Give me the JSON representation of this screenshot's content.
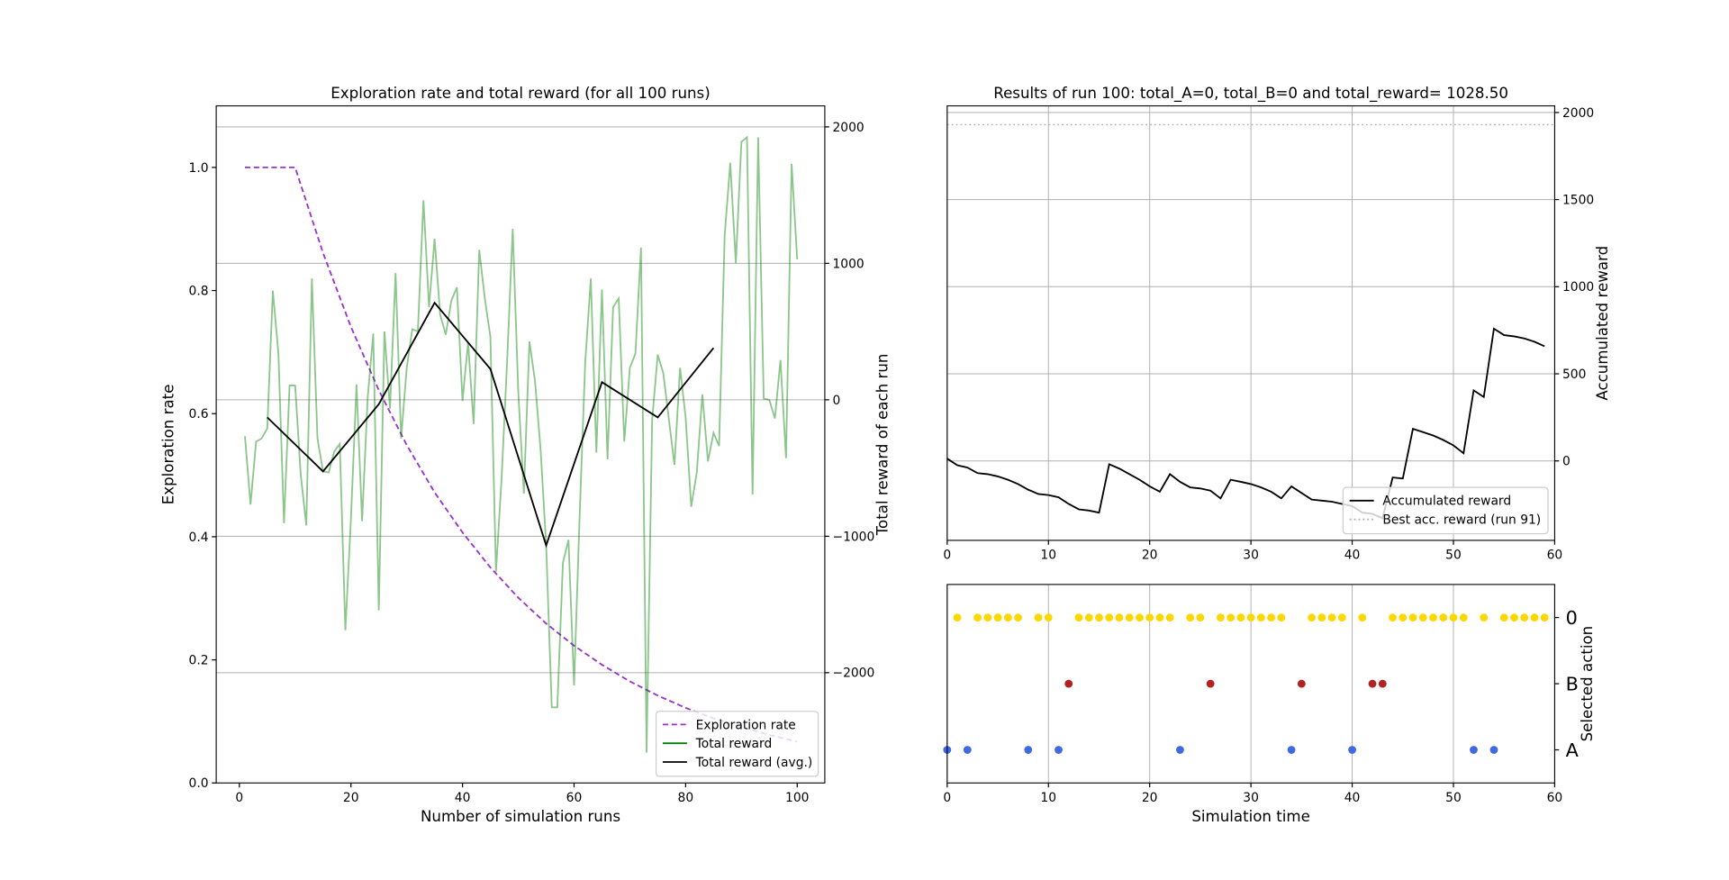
{
  "chart_data": [
    {
      "type": "line",
      "title": "Exploration rate and total reward (for all 100 runs)",
      "xlabel": "Number of simulation runs",
      "ylabel": "Exploration rate",
      "y2label": "Total reward of each run",
      "ylabel_color": "#9932cc",
      "y2label_color": "#2e8b2e",
      "xlim": [
        -4.15,
        104.95
      ],
      "xticks": [
        0,
        20,
        40,
        60,
        80,
        100
      ],
      "ylim": [
        0,
        1.1
      ],
      "yticks": [
        {
          "value": 0,
          "label": "0.0"
        },
        0.2,
        0.4,
        0.6,
        0.8,
        {
          "value": 1,
          "label": "1.0"
        }
      ],
      "y2lim": [
        -2808,
        2154
      ],
      "y2ticks": [
        {
          "value": -2000,
          "label": "−2000"
        },
        {
          "value": -1000,
          "label": "−1000"
        },
        0,
        1000,
        2000
      ],
      "grid": "y2",
      "legend": "lower right",
      "series": [
        {
          "name": "Exploration rate",
          "color": "#9932cc",
          "dash": "dashed",
          "x": [
            1,
            10,
            15,
            20,
            25,
            30,
            35,
            40,
            45,
            50,
            55,
            60,
            65,
            70,
            75,
            80,
            85,
            90,
            95,
            100
          ],
          "values": [
            1,
            1,
            0.861,
            0.741,
            0.638,
            0.549,
            0.472,
            0.407,
            0.35,
            0.301,
            0.259,
            0.223,
            0.192,
            0.165,
            0.142,
            0.122,
            0.105,
            0.091,
            0.078,
            0.067
          ]
        },
        {
          "name": "Total reward",
          "color": "#008000",
          "alpha": 0.45,
          "axis": "y2",
          "x": [
            1,
            2,
            3,
            4,
            5,
            6,
            7,
            8,
            9,
            10,
            11,
            12,
            13,
            14,
            15,
            16,
            17,
            18,
            19,
            20,
            21,
            22,
            23,
            24,
            25,
            26,
            27,
            28,
            29,
            30,
            31,
            32,
            33,
            34,
            35,
            36,
            37,
            38,
            39,
            40,
            41,
            42,
            43,
            44,
            45,
            46,
            47,
            48,
            49,
            50,
            51,
            52,
            53,
            54,
            55,
            56,
            57,
            58,
            59,
            60,
            61,
            62,
            63,
            64,
            65,
            66,
            67,
            68,
            69,
            70,
            71,
            72,
            73,
            74,
            75,
            76,
            77,
            78,
            79,
            80,
            81,
            82,
            83,
            84,
            85,
            86,
            87,
            88,
            89,
            90,
            91,
            92,
            93,
            94,
            95,
            96,
            97,
            98,
            99,
            100
          ],
          "values": [
            -267,
            -768,
            -307,
            -283,
            -210,
            800,
            339,
            -905,
            105,
            105,
            -549,
            -921,
            889,
            -283,
            -525,
            -533,
            -380,
            -323,
            -1689,
            -873,
            113,
            -889,
            16,
            485,
            -1543,
            501,
            -65,
            929,
            -283,
            234,
            517,
            501,
            1462,
            679,
            1180,
            622,
            477,
            727,
            824,
            -8,
            420,
            -178,
            1099,
            743,
            461,
            -1260,
            -582,
            283,
            1252,
            57,
            -687,
            428,
            137,
            -364,
            -1067,
            -2254,
            -2254,
            -1196,
            -1026,
            -2093,
            -848,
            275,
            889,
            -388,
            808,
            -436,
            679,
            743,
            -307,
            234,
            339,
            1115,
            -2586,
            -145,
            331,
            194,
            -145,
            -477,
            234,
            -129,
            -784,
            -533,
            40,
            -452,
            -242,
            -339,
            1204,
            1737,
            1002,
            1891,
            1923,
            -695,
            1923,
            8,
            0,
            -137,
            291,
            -428,
            1729,
            1028.5
          ]
        },
        {
          "name": "Total reward (avg.)",
          "color": "#000000",
          "axis": "y2",
          "x": [
            5,
            15,
            25,
            35,
            45,
            55,
            65,
            75,
            85
          ],
          "values": [
            -129,
            -525,
            -32,
            711,
            226,
            -1067,
            129,
            -129,
            380
          ]
        }
      ]
    },
    {
      "type": "line",
      "title": "Results of run 100: total_A=0, total_B=0 and total_reward= 1028.50",
      "ylabel": "Accumulated reward",
      "yaxis_side": "right",
      "xlim": [
        0,
        60
      ],
      "xticks": [
        0,
        10,
        20,
        30,
        40,
        50,
        60
      ],
      "ylim": [
        -456,
        2038
      ],
      "yticks": [
        0,
        500,
        1000,
        1500,
        2000
      ],
      "grid": "both",
      "legend": "lower right",
      "series": [
        {
          "name": "Accumulated reward",
          "color": "#000000",
          "x": [
            0,
            1,
            2,
            3,
            4,
            5,
            6,
            7,
            8,
            9,
            10,
            11,
            12,
            13,
            14,
            15,
            16,
            17,
            18,
            19,
            20,
            21,
            22,
            23,
            24,
            25,
            26,
            27,
            28,
            29,
            30,
            31,
            32,
            33,
            34,
            35,
            36,
            37,
            38,
            39,
            40,
            41,
            42,
            43,
            44,
            45,
            46,
            47,
            48,
            49,
            50,
            51,
            52,
            53,
            54,
            55,
            56,
            57,
            58,
            59
          ],
          "values": [
            13,
            -25,
            -38,
            -70,
            -76,
            -89,
            -108,
            -133,
            -165,
            -190,
            -196,
            -209,
            -247,
            -278,
            -285,
            -297,
            -19,
            -44,
            -76,
            -108,
            -146,
            -177,
            -76,
            -120,
            -152,
            -158,
            -171,
            -215,
            -108,
            -120,
            -133,
            -152,
            -177,
            -215,
            -146,
            -184,
            -222,
            -228,
            -234,
            -247,
            -259,
            -297,
            -304,
            -329,
            -95,
            -101,
            184,
            165,
            146,
            120,
            89,
            44,
            405,
            367,
            759,
            722,
            715,
            703,
            684,
            658
          ]
        },
        {
          "name": "Best acc. reward (run 91)",
          "color": "#b0b0b0",
          "dash": "dotted",
          "hline": 1930
        }
      ]
    },
    {
      "type": "scatter",
      "xlabel": "Simulation time",
      "ylabel": "Selected action",
      "xlim": [
        0,
        60
      ],
      "xticks": [
        0,
        10,
        20,
        30,
        40,
        50,
        60
      ],
      "grid": "x",
      "ycategories": [
        "A",
        "B",
        "0"
      ],
      "ycolors": [
        "#4169e1",
        "#b22222",
        "#ffd700"
      ],
      "x": [
        0,
        1,
        2,
        3,
        4,
        5,
        6,
        7,
        8,
        9,
        10,
        11,
        12,
        13,
        14,
        15,
        16,
        17,
        18,
        19,
        20,
        21,
        22,
        23,
        24,
        25,
        26,
        27,
        28,
        29,
        30,
        31,
        32,
        33,
        34,
        35,
        36,
        37,
        38,
        39,
        40,
        41,
        42,
        43,
        44,
        45,
        46,
        47,
        48,
        49,
        50,
        51,
        52,
        53,
        54,
        55,
        56,
        57,
        58,
        59
      ],
      "values": [
        "A",
        "0",
        "A",
        "0",
        "0",
        "0",
        "0",
        "0",
        "A",
        "0",
        "0",
        "A",
        "B",
        "0",
        "0",
        "0",
        "0",
        "0",
        "0",
        "0",
        "0",
        "0",
        "0",
        "A",
        "0",
        "0",
        "B",
        "0",
        "0",
        "0",
        "0",
        "0",
        "0",
        "0",
        "A",
        "B",
        "0",
        "0",
        "0",
        "0",
        "A",
        "0",
        "B",
        "B",
        "0",
        "0",
        "0",
        "0",
        "0",
        "0",
        "0",
        "0",
        "A",
        "0",
        "A",
        "0",
        "0",
        "0",
        "0",
        "0"
      ]
    }
  ]
}
